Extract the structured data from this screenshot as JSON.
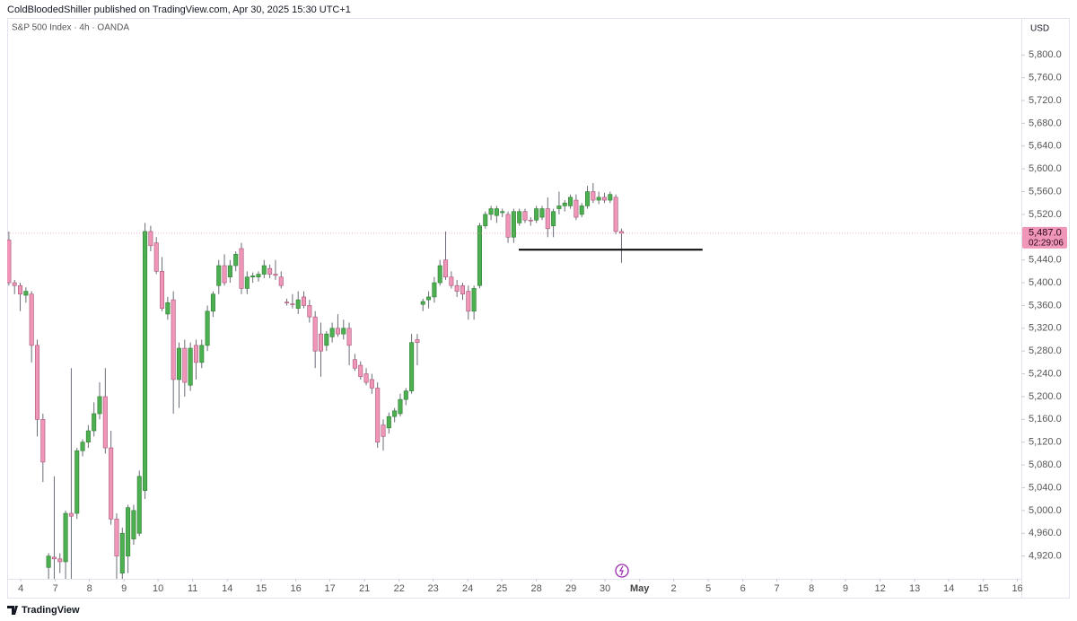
{
  "header": {
    "publisher": "ColdBloodedShiller published on TradingView.com, Apr 30, 2025 15:30 UTC+1"
  },
  "footer": {
    "brand": "TradingView"
  },
  "chart_data": {
    "type": "candlestick",
    "title": "S&P 500 Index · 4h · OANDA",
    "currency": "USD",
    "up_color": "#4caf50",
    "down_color": "#f096b8",
    "series": [
      {
        "open": [
          5475,
          5400,
          5395,
          5378,
          5380,
          5290,
          5160,
          4900,
          4918,
          4915,
          4910,
          4995,
          4995,
          5105,
          5120,
          5140,
          5170,
          5200,
          5110,
          4985,
          4890,
          4920,
          4950,
          4960,
          5035,
          5490,
          5470,
          5420,
          5345,
          5370,
          5230,
          5285,
          5220,
          5290,
          5260,
          5290,
          5350,
          5395,
          5430,
          5410,
          5430,
          5460,
          5390,
          5410,
          5410,
          5415,
          5425,
          5415,
          5410,
          5366,
          5363,
          5355,
          5375,
          5360,
          5340,
          5310,
          5290,
          5305,
          5320,
          5310,
          5320,
          5265,
          5255,
          5240,
          5230,
          5215,
          5150,
          5145,
          5165,
          5170,
          5195,
          5210,
          5300,
          5362,
          5370,
          5375,
          5400,
          5440,
          5410,
          5395,
          5395,
          5385,
          5350,
          5395,
          5500,
          5520,
          5518,
          5523,
          5520,
          5480,
          5505,
          5525,
          5510,
          5510,
          5515,
          5530,
          5500,
          5530,
          5535,
          5535,
          5545,
          5520,
          5535,
          5560,
          5545,
          5550,
          5545,
          5550,
          5490
        ],
        "high": [
          5490,
          5405,
          5400,
          5392,
          5385,
          5300,
          5170,
          4925,
          5060,
          4925,
          5000,
          5250,
          5110,
          5125,
          5150,
          5190,
          5225,
          5250,
          5140,
          4995,
          4970,
          5010,
          5010,
          5070,
          5505,
          5500,
          5480,
          5445,
          5375,
          5385,
          5295,
          5300,
          5295,
          5300,
          5300,
          5360,
          5385,
          5440,
          5450,
          5440,
          5455,
          5470,
          5420,
          5418,
          5420,
          5440,
          5432,
          5440,
          5420,
          5372,
          5380,
          5385,
          5385,
          5370,
          5350,
          5330,
          5315,
          5330,
          5345,
          5335,
          5330,
          5275,
          5262,
          5250,
          5240,
          5225,
          5160,
          5172,
          5180,
          5205,
          5215,
          5310,
          5310,
          5372,
          5385,
          5410,
          5440,
          5490,
          5420,
          5405,
          5400,
          5395,
          5395,
          5505,
          5525,
          5535,
          5535,
          5530,
          5525,
          5530,
          5530,
          5530,
          5515,
          5535,
          5535,
          5550,
          5530,
          5560,
          5545,
          5555,
          5555,
          5540,
          5570,
          5575,
          5560,
          5558,
          5560,
          5555,
          5495
        ],
        "low": [
          5395,
          5380,
          5350,
          5365,
          5260,
          5130,
          5050,
          4880,
          4880,
          4890,
          4880,
          4880,
          4985,
          5095,
          5110,
          5130,
          5160,
          5100,
          4975,
          4880,
          4880,
          4890,
          4940,
          4955,
          5020,
          5455,
          5415,
          5350,
          5335,
          5170,
          5180,
          5200,
          5210,
          5230,
          5250,
          5280,
          5340,
          5380,
          5395,
          5400,
          5420,
          5380,
          5380,
          5400,
          5402,
          5408,
          5408,
          5405,
          5390,
          5360,
          5355,
          5345,
          5355,
          5330,
          5250,
          5235,
          5280,
          5295,
          5305,
          5300,
          5255,
          5245,
          5230,
          5220,
          5205,
          5110,
          5105,
          5135,
          5155,
          5165,
          5185,
          5205,
          5255,
          5350,
          5355,
          5365,
          5395,
          5405,
          5390,
          5375,
          5370,
          5335,
          5335,
          5390,
          5495,
          5510,
          5505,
          5515,
          5470,
          5470,
          5500,
          5505,
          5500,
          5505,
          5510,
          5480,
          5480,
          5520,
          5525,
          5530,
          5510,
          5515,
          5530,
          5540,
          5538,
          5540,
          5540,
          5485,
          5435
        ],
        "close": [
          5400,
          5395,
          5380,
          5385,
          5290,
          5160,
          5085,
          4920,
          4915,
          4910,
          4995,
          4990,
          5105,
          5120,
          5140,
          5170,
          5200,
          5110,
          4985,
          4920,
          4960,
          5005,
          5000,
          5060,
          5490,
          5465,
          5420,
          5355,
          5365,
          5230,
          5285,
          5225,
          5285,
          5260,
          5290,
          5350,
          5380,
          5430,
          5400,
          5430,
          5450,
          5390,
          5410,
          5412,
          5415,
          5430,
          5415,
          5413,
          5395,
          5365,
          5362,
          5370,
          5360,
          5340,
          5280,
          5280,
          5310,
          5320,
          5310,
          5320,
          5290,
          5250,
          5235,
          5225,
          5215,
          5120,
          5130,
          5165,
          5175,
          5195,
          5210,
          5295,
          5295,
          5367,
          5375,
          5400,
          5430,
          5410,
          5395,
          5385,
          5380,
          5350,
          5390,
          5500,
          5520,
          5530,
          5530,
          5525,
          5480,
          5525,
          5525,
          5510,
          5509,
          5530,
          5530,
          5495,
          5525,
          5535,
          5540,
          5550,
          5515,
          5535,
          5560,
          5545,
          5550,
          5545,
          5555,
          5490,
          5487
        ]
      }
    ],
    "last_price": {
      "value": 5487,
      "label": "5,487.0"
    },
    "countdown": "02:29:06",
    "horizontal_line": {
      "value": 5458,
      "x": [
        89.9,
        122.3
      ]
    },
    "ylim": [
      4880,
      5865
    ],
    "yticks": [
      {
        "value": 4920,
        "label": "4,920.0"
      },
      {
        "value": 4960,
        "label": "4,960.0"
      },
      {
        "value": 5000,
        "label": "5,000.0"
      },
      {
        "value": 5040,
        "label": "5,040.0"
      },
      {
        "value": 5080,
        "label": "5,080.0"
      },
      {
        "value": 5120,
        "label": "5,120.0"
      },
      {
        "value": 5160,
        "label": "5,160.0"
      },
      {
        "value": 5200,
        "label": "5,200.0"
      },
      {
        "value": 5240,
        "label": "5,240.0"
      },
      {
        "value": 5280,
        "label": "5,280.0"
      },
      {
        "value": 5320,
        "label": "5,320.0"
      },
      {
        "value": 5360,
        "label": "5,360.0"
      },
      {
        "value": 5400,
        "label": "5,400.0"
      },
      {
        "value": 5440,
        "label": "5,440.0"
      },
      {
        "value": 5480,
        "label": "5,480.0"
      },
      {
        "value": 5520,
        "label": "5,520.0"
      },
      {
        "value": 5560,
        "label": "5,560.0"
      },
      {
        "value": 5600,
        "label": "5,600.0"
      },
      {
        "value": 5640,
        "label": "5,640.0"
      },
      {
        "value": 5680,
        "label": "5,680.0"
      },
      {
        "value": 5720,
        "label": "5,720.0"
      },
      {
        "value": 5760,
        "label": "5,760.0"
      },
      {
        "value": 5800,
        "label": "5,800.0"
      }
    ],
    "xlim": [
      -0.3,
      178.5
    ],
    "xticks": [
      {
        "value": 2.1,
        "label": "4"
      },
      {
        "value": 8.2,
        "label": "7"
      },
      {
        "value": 14.2,
        "label": "8"
      },
      {
        "value": 20.3,
        "label": "9"
      },
      {
        "value": 26.3,
        "label": "10"
      },
      {
        "value": 32.4,
        "label": "11"
      },
      {
        "value": 38.5,
        "label": "14"
      },
      {
        "value": 44.5,
        "label": "15"
      },
      {
        "value": 50.6,
        "label": "16"
      },
      {
        "value": 56.6,
        "label": "17"
      },
      {
        "value": 62.7,
        "label": "21"
      },
      {
        "value": 68.8,
        "label": "22"
      },
      {
        "value": 74.8,
        "label": "23"
      },
      {
        "value": 80.9,
        "label": "24"
      },
      {
        "value": 86.9,
        "label": "25"
      },
      {
        "value": 93.0,
        "label": "28"
      },
      {
        "value": 99.1,
        "label": "29"
      },
      {
        "value": 105.1,
        "label": "30"
      },
      {
        "value": 111.2,
        "label": "May"
      },
      {
        "value": 117.2,
        "label": "2"
      },
      {
        "value": 123.3,
        "label": "5"
      },
      {
        "value": 129.4,
        "label": "6"
      },
      {
        "value": 135.4,
        "label": "7"
      },
      {
        "value": 141.5,
        "label": "8"
      },
      {
        "value": 147.5,
        "label": "9"
      },
      {
        "value": 153.6,
        "label": "12"
      },
      {
        "value": 159.7,
        "label": "13"
      },
      {
        "value": 165.7,
        "label": "14"
      },
      {
        "value": 171.8,
        "label": "15"
      },
      {
        "value": 177.8,
        "label": "16"
      }
    ]
  }
}
